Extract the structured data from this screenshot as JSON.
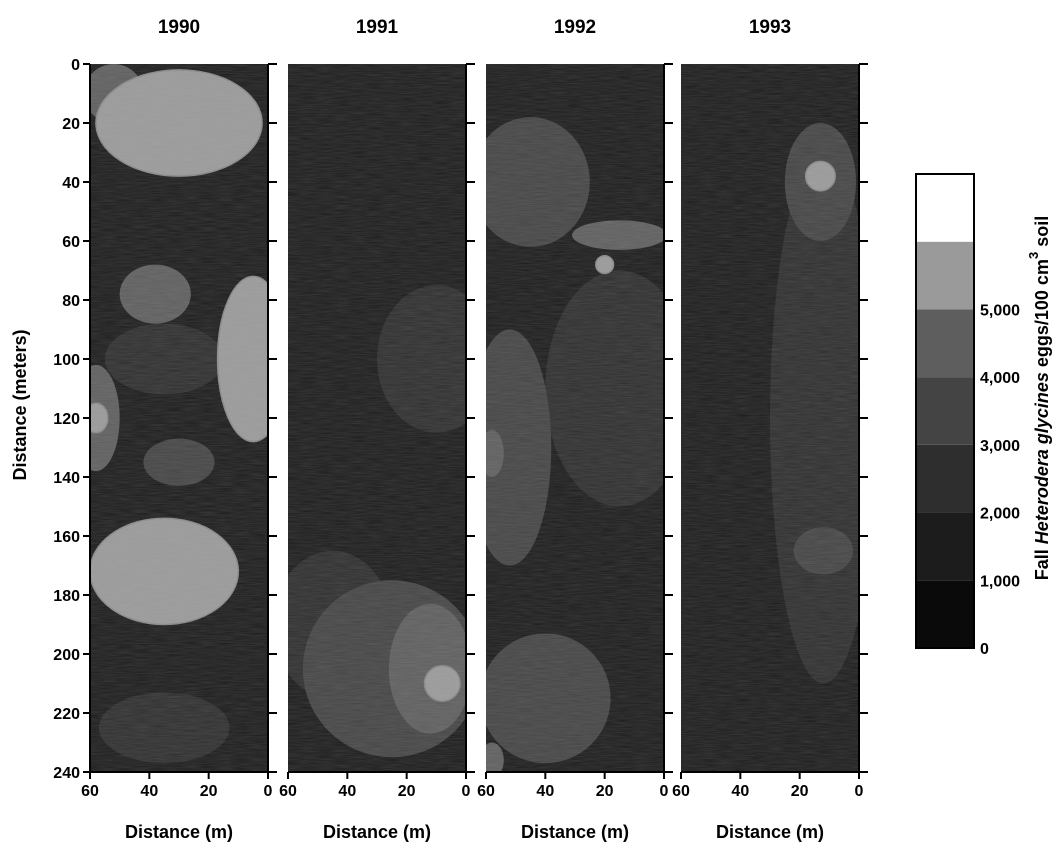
{
  "chart_data": {
    "type": "heatmap",
    "panels": [
      {
        "title": "1990",
        "xlabel": "Distance (m)",
        "blobs": [
          {
            "x": 30,
            "y": 20,
            "rx": 28,
            "ry": 18,
            "level": 5
          },
          {
            "x": 5,
            "y": 100,
            "rx": 12,
            "ry": 28,
            "level": 5
          },
          {
            "x": 35,
            "y": 172,
            "rx": 25,
            "ry": 18,
            "level": 5
          },
          {
            "x": 58,
            "y": 120,
            "rx": 4,
            "ry": 5,
            "level": 5
          },
          {
            "x": 52,
            "y": 10,
            "rx": 10,
            "ry": 10,
            "level": 4
          },
          {
            "x": 58,
            "y": 120,
            "rx": 8,
            "ry": 18,
            "level": 4
          },
          {
            "x": 38,
            "y": 78,
            "rx": 12,
            "ry": 10,
            "level": 4
          },
          {
            "x": 30,
            "y": 135,
            "rx": 12,
            "ry": 8,
            "level": 3
          },
          {
            "x": 35,
            "y": 100,
            "rx": 20,
            "ry": 12,
            "level": 2
          },
          {
            "x": 35,
            "y": 225,
            "rx": 22,
            "ry": 12,
            "level": 2
          }
        ]
      },
      {
        "title": "1991",
        "xlabel": "Distance (m)",
        "blobs": [
          {
            "x": 8,
            "y": 210,
            "rx": 6,
            "ry": 6,
            "level": 5
          },
          {
            "x": 12,
            "y": 205,
            "rx": 14,
            "ry": 22,
            "level": 4
          },
          {
            "x": 25,
            "y": 205,
            "rx": 30,
            "ry": 30,
            "level": 3
          },
          {
            "x": 10,
            "y": 100,
            "rx": 20,
            "ry": 25,
            "level": 2
          },
          {
            "x": 45,
            "y": 190,
            "rx": 20,
            "ry": 25,
            "level": 2
          }
        ]
      },
      {
        "title": "1992",
        "xlabel": "Distance (m)",
        "blobs": [
          {
            "x": 20,
            "y": 68,
            "rx": 3,
            "ry": 3,
            "level": 5
          },
          {
            "x": 58,
            "y": 132,
            "rx": 4,
            "ry": 8,
            "level": 4
          },
          {
            "x": 15,
            "y": 58,
            "rx": 16,
            "ry": 5,
            "level": 4
          },
          {
            "x": 58,
            "y": 236,
            "rx": 4,
            "ry": 6,
            "level": 4
          },
          {
            "x": 45,
            "y": 40,
            "rx": 20,
            "ry": 22,
            "level": 3
          },
          {
            "x": 52,
            "y": 130,
            "rx": 14,
            "ry": 40,
            "level": 3
          },
          {
            "x": 40,
            "y": 215,
            "rx": 22,
            "ry": 22,
            "level": 3
          },
          {
            "x": 15,
            "y": 110,
            "rx": 25,
            "ry": 40,
            "level": 2
          }
        ]
      },
      {
        "title": "1993",
        "xlabel": "Distance (m)",
        "blobs": [
          {
            "x": 13,
            "y": 38,
            "rx": 5,
            "ry": 5,
            "level": 5
          },
          {
            "x": 13,
            "y": 40,
            "rx": 12,
            "ry": 20,
            "level": 3
          },
          {
            "x": 12,
            "y": 165,
            "rx": 10,
            "ry": 8,
            "level": 3
          },
          {
            "x": 12,
            "y": 120,
            "rx": 18,
            "ry": 90,
            "level": 2
          }
        ]
      }
    ],
    "ylabel": "Distance (meters)",
    "xlim": [
      60,
      0
    ],
    "ylim": [
      0,
      240
    ],
    "xticks": [
      60,
      40,
      20,
      0
    ],
    "yticks": [
      0,
      20,
      40,
      60,
      80,
      100,
      120,
      140,
      160,
      180,
      200,
      220,
      240
    ],
    "colorbar": {
      "label_prefix": "Fall ",
      "label_italic": "Heterodera glycines",
      "label_suffix": " eggs/100 cm",
      "label_superscript": "3",
      "label_end": " soil",
      "levels": [
        "0",
        "1,000",
        "2,000",
        "3,000",
        "4,000",
        "5,000"
      ],
      "colors": [
        "#0a0a0a",
        "#1c1c1c",
        "#2e2e2e",
        "#444444",
        "#5e5e5e",
        "#9a9a9a",
        "#ffffff"
      ]
    },
    "grid": false
  }
}
